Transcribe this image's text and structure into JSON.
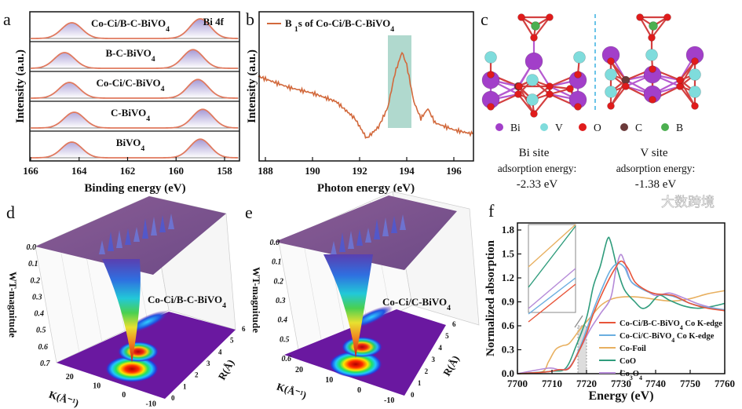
{
  "figure": {
    "watermark": "大数跨境"
  },
  "chart_data": [
    {
      "panel": "a",
      "type": "line",
      "title": "Bi 4f",
      "xlabel": "Binding energy (eV)",
      "ylabel": "Intensity (a.u.)",
      "xlim": [
        166,
        157.4
      ],
      "xticks": [
        "166",
        "164",
        "162",
        "160",
        "158"
      ],
      "series": [
        {
          "name": "Co-Ci/B-C-BiVO4",
          "peaks": [
            164.3,
            159.0
          ],
          "heights": [
            0.8,
            1.0
          ]
        },
        {
          "name": "B-C-BiVO4",
          "peaks": [
            164.6,
            159.3
          ],
          "heights": [
            0.8,
            0.95
          ]
        },
        {
          "name": "Co-Ci/C-BiVO4",
          "peaks": [
            164.4,
            159.1
          ],
          "heights": [
            0.8,
            0.95
          ]
        },
        {
          "name": "C-BiVO4",
          "peaks": [
            164.2,
            158.9
          ],
          "heights": [
            0.8,
            0.95
          ]
        },
        {
          "name": "BiVO4",
          "peaks": [
            164.3,
            159.0
          ],
          "heights": [
            0.8,
            0.95
          ]
        }
      ],
      "color": "#e07a5f"
    },
    {
      "panel": "b",
      "type": "line",
      "legend": "B 1s of Co-Ci/B-C-BiVO4",
      "xlabel": "Photon energy (eV)",
      "ylabel": "Intensity (a.u.)",
      "xlim": [
        187.7,
        196.8
      ],
      "xticks": [
        "188",
        "190",
        "192",
        "194",
        "196"
      ],
      "highlight_range": [
        193.2,
        194.2
      ],
      "x": [
        187.7,
        188,
        189,
        190,
        191,
        191.8,
        192.3,
        192.8,
        193.2,
        193.5,
        193.8,
        194.0,
        194.3,
        194.6,
        194.9,
        195.2,
        196,
        196.8
      ],
      "y": [
        0.6,
        0.58,
        0.52,
        0.48,
        0.42,
        0.3,
        0.16,
        0.24,
        0.38,
        0.62,
        0.77,
        0.68,
        0.42,
        0.3,
        0.37,
        0.27,
        0.22,
        0.19
      ],
      "color": "#d2693c"
    },
    {
      "panel": "d",
      "type": "surface",
      "label": "Co-Ci/B-C-BiVO4",
      "zlabel": "WT-magnitude",
      "xlabel": "K(Å⁻¹)",
      "ylabel": "R(Å)",
      "zticks": [
        "0.0",
        "0.1",
        "0.2",
        "0.3",
        "0.4",
        "0.5",
        "0.6",
        "0.7"
      ],
      "kticks": [
        "20",
        "10",
        "0",
        "-10"
      ],
      "rticks": [
        "0",
        "1",
        "2",
        "3",
        "4",
        "5",
        "6"
      ]
    },
    {
      "panel": "e",
      "type": "surface",
      "label": "Co-Ci/C-BiVO4",
      "zlabel": "WT-magnitude",
      "xlabel": "K(Å⁻¹)",
      "ylabel": "R(Å)",
      "zticks": [
        "0.0",
        "0.1",
        "0.2",
        "0.3",
        "0.4",
        "0.5",
        "0.6"
      ],
      "kticks": [
        "20",
        "10",
        "0",
        "-10"
      ],
      "rticks": [
        "0",
        "1",
        "2",
        "3",
        "4",
        "5",
        "6"
      ]
    },
    {
      "panel": "f",
      "type": "line",
      "xlabel": "Energy (eV)",
      "ylabel": "Normalized absorption",
      "xlim": [
        7700,
        7760
      ],
      "ylim": [
        0,
        1.86
      ],
      "xticks": [
        "7700",
        "7710",
        "7720",
        "7730",
        "7740",
        "7750",
        "7760"
      ],
      "yticks": [
        "0.0",
        "0.3",
        "0.6",
        "0.9",
        "1.2",
        "1.5",
        "1.8"
      ],
      "zoom_range": [
        7717.5,
        7720
      ],
      "series": [
        {
          "name": "Co-Ci/B-C-BiVO4 Co K-edge",
          "color": "#e8553a",
          "x": [
            7700,
            7708,
            7712,
            7715,
            7718,
            7720,
            7722,
            7725,
            7728,
            7730,
            7732,
            7734,
            7737,
            7740,
            7745,
            7750,
            7755,
            7760
          ],
          "y": [
            0,
            0.02,
            0.05,
            0.07,
            0.3,
            0.5,
            0.75,
            1.05,
            1.3,
            1.41,
            1.32,
            1.15,
            1.05,
            1.0,
            0.98,
            0.88,
            0.82,
            0.79
          ]
        },
        {
          "name": "Co-Ci/C-BiVO4 Co K-edge",
          "color": "#6aaee0",
          "x": [
            7700,
            7708,
            7712,
            7715,
            7718,
            7720,
            7722,
            7725,
            7727,
            7729,
            7731,
            7733,
            7737,
            7740,
            7745,
            7750,
            7755,
            7760
          ],
          "y": [
            0,
            0.02,
            0.05,
            0.07,
            0.32,
            0.55,
            0.8,
            1.12,
            1.3,
            1.38,
            1.33,
            1.15,
            1.04,
            1.0,
            0.97,
            0.88,
            0.83,
            0.8
          ]
        },
        {
          "name": "Co-Foil",
          "color": "#e8b060",
          "x": [
            7700,
            7707,
            7709,
            7711,
            7713,
            7715,
            7718,
            7721,
            7724,
            7727,
            7730,
            7735,
            7740,
            7745,
            7750,
            7755,
            7760
          ],
          "y": [
            0,
            0.02,
            0.15,
            0.3,
            0.35,
            0.38,
            0.55,
            0.7,
            0.85,
            0.93,
            0.96,
            0.96,
            0.93,
            0.91,
            0.94,
            1.0,
            1.04
          ]
        },
        {
          "name": "CoO",
          "color": "#2f9c7c",
          "x": [
            7700,
            7710,
            7714,
            7717,
            7720,
            7722,
            7724,
            7726,
            7727,
            7729,
            7731,
            7734,
            7736,
            7738,
            7741,
            7744,
            7748,
            7752,
            7756,
            7760
          ],
          "y": [
            0,
            0.03,
            0.07,
            0.35,
            0.7,
            1.1,
            1.35,
            1.68,
            1.65,
            1.3,
            1.05,
            0.9,
            0.82,
            0.85,
            0.98,
            0.92,
            0.85,
            0.82,
            0.84,
            0.88
          ]
        },
        {
          "name": "Co3O4",
          "color": "#b58ad8",
          "x": [
            7700,
            7709,
            7712,
            7715,
            7718,
            7721,
            7724,
            7727,
            7728.5,
            7729.8,
            7731,
            7733,
            7737,
            7740,
            7744,
            7748,
            7752,
            7756,
            7760
          ],
          "y": [
            0,
            0.07,
            0.05,
            0.08,
            0.3,
            0.55,
            0.75,
            0.95,
            1.3,
            1.49,
            1.4,
            1.15,
            1.05,
            0.98,
            1.01,
            0.95,
            0.88,
            0.83,
            0.8
          ]
        }
      ]
    }
  ],
  "structure": {
    "panel": "c",
    "legend": [
      {
        "label": "Bi",
        "color": "#a23fc9"
      },
      {
        "label": "V",
        "color": "#7fdcdc"
      },
      {
        "label": "O",
        "color": "#e01b1b"
      },
      {
        "label": "C",
        "color": "#6b3a3a"
      },
      {
        "label": "B",
        "color": "#4caf50"
      }
    ],
    "sites": [
      {
        "name": "Bi site",
        "caption": "adsorption energy:",
        "energy": "-2.33 eV"
      },
      {
        "name": "V site",
        "caption": "adsorption energy:",
        "energy": "-1.38 eV"
      }
    ]
  }
}
